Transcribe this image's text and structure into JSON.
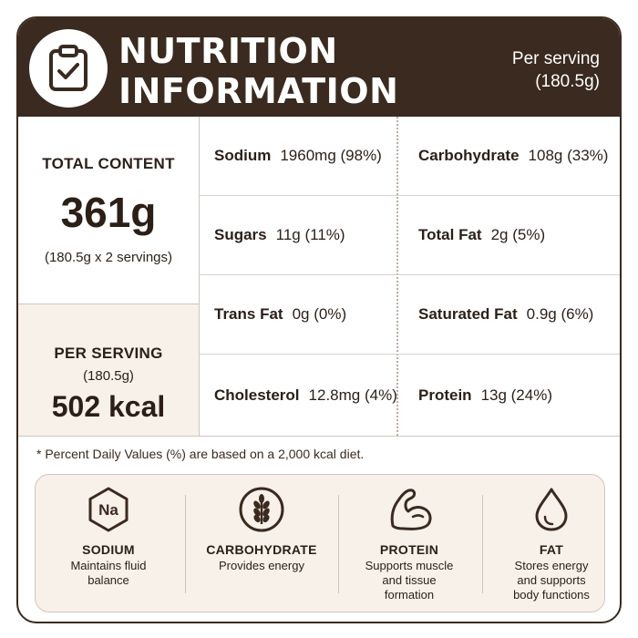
{
  "header": {
    "title_line1": "NUTRITION",
    "title_line2": "INFORMATION",
    "per_serving_label": "Per serving",
    "per_serving_amount": "(180.5g)"
  },
  "total": {
    "label": "TOTAL CONTENT",
    "value": "361g",
    "detail": "(180.5g x 2 servings)"
  },
  "per_serving": {
    "label": "PER SERVING",
    "amount": "(180.5g)",
    "kcal": "502 kcal"
  },
  "nutrients": [
    {
      "left": {
        "name": "Sodium",
        "value": "1960mg (98%)"
      },
      "right": {
        "name": "Carbohydrate",
        "value": "108g (33%)"
      }
    },
    {
      "left": {
        "name": "Sugars",
        "value": "11g  (11%)"
      },
      "right": {
        "name": "Total Fat",
        "value": "2g  (5%)"
      }
    },
    {
      "left": {
        "name": "Trans Fat",
        "value": "0g  (0%)"
      },
      "right": {
        "name": "Saturated Fat",
        "value": "0.9g  (6%)"
      }
    },
    {
      "left": {
        "name": "Cholesterol",
        "value": "12.8mg (4%)"
      },
      "right": {
        "name": "Protein",
        "value": "13g  (24%)"
      }
    }
  ],
  "footnote": "* Percent Daily Values (%) are based on a 2,000 kcal diet.",
  "features": [
    {
      "icon": "sodium-na-icon",
      "name": "SODIUM",
      "desc1": "Maintains fluid",
      "desc2": "balance",
      "desc3": ""
    },
    {
      "icon": "wheat-icon",
      "name": "CARBOHYDRATE",
      "desc1": "Provides energy",
      "desc2": "",
      "desc3": ""
    },
    {
      "icon": "flexed-arm-icon",
      "name": "PROTEIN",
      "desc1": "Supports muscle",
      "desc2": "and tissue",
      "desc3": "formation"
    },
    {
      "icon": "droplet-icon",
      "name": "FAT",
      "desc1": "Stores energy",
      "desc2": "and supports",
      "desc3": "body functions"
    }
  ],
  "colors": {
    "brand_dark": "#3a2a1f",
    "panel_beige": "#f7f1ea"
  }
}
